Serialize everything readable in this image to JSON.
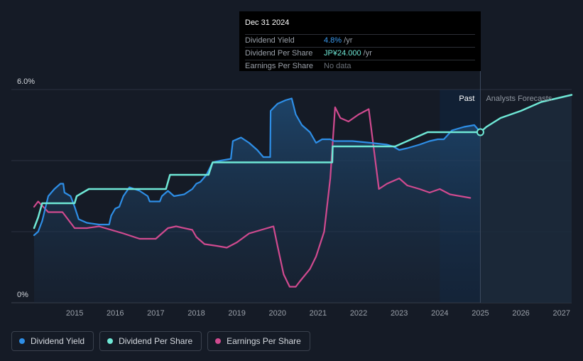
{
  "tooltip": {
    "date": "Dec 31 2024",
    "rows": [
      {
        "label": "Dividend Yield",
        "value": "4.8%",
        "unit": " /yr"
      },
      {
        "label": "Dividend Per Share",
        "value": "JP¥24.000",
        "unit": " /yr"
      },
      {
        "label": "Earnings Per Share",
        "value": "No data",
        "unit": ""
      }
    ]
  },
  "legend": [
    {
      "label": "Dividend Yield",
      "color": "#2e8ee6"
    },
    {
      "label": "Dividend Per Share",
      "color": "#6fe8d6"
    },
    {
      "label": "Earnings Per Share",
      "color": "#d04a8f"
    }
  ],
  "chart_data": {
    "type": "line",
    "title": "",
    "xlabel": "",
    "ylabel": "",
    "xlim": [
      2014.0,
      2027.25
    ],
    "ylim": [
      0,
      6
    ],
    "y_tick_labels": [
      {
        "v": 6,
        "label": "6.0%"
      },
      {
        "v": 0,
        "label": "0%"
      }
    ],
    "x_ticks": [
      2015,
      2016,
      2017,
      2018,
      2019,
      2020,
      2021,
      2022,
      2023,
      2024,
      2025,
      2026,
      2027
    ],
    "past_label": "Past",
    "forecast_label": "Analysts Forecasts",
    "forecast_start": 2025.0,
    "highlight_start": 2024.0,
    "series": [
      {
        "name": "Dividend Yield",
        "color": "#2e8ee6",
        "area": true,
        "points": [
          [
            2014.0,
            1.9
          ],
          [
            2014.1,
            2.0
          ],
          [
            2014.2,
            2.3
          ],
          [
            2014.35,
            3.0
          ],
          [
            2014.5,
            3.2
          ],
          [
            2014.65,
            3.35
          ],
          [
            2014.72,
            3.35
          ],
          [
            2014.75,
            3.1
          ],
          [
            2014.9,
            3.0
          ],
          [
            2015.0,
            2.7
          ],
          [
            2015.1,
            2.35
          ],
          [
            2015.3,
            2.25
          ],
          [
            2015.6,
            2.2
          ],
          [
            2015.85,
            2.2
          ],
          [
            2015.9,
            2.45
          ],
          [
            2016.0,
            2.65
          ],
          [
            2016.1,
            2.7
          ],
          [
            2016.2,
            3.0
          ],
          [
            2016.35,
            3.25
          ],
          [
            2016.6,
            3.15
          ],
          [
            2016.8,
            3.0
          ],
          [
            2016.85,
            2.85
          ],
          [
            2017.1,
            2.85
          ],
          [
            2017.15,
            3.0
          ],
          [
            2017.3,
            3.15
          ],
          [
            2017.45,
            3.0
          ],
          [
            2017.7,
            3.05
          ],
          [
            2017.9,
            3.2
          ],
          [
            2018.0,
            3.35
          ],
          [
            2018.1,
            3.4
          ],
          [
            2018.25,
            3.6
          ],
          [
            2018.4,
            3.95
          ],
          [
            2018.6,
            4.0
          ],
          [
            2018.85,
            4.05
          ],
          [
            2018.9,
            4.55
          ],
          [
            2019.1,
            4.65
          ],
          [
            2019.3,
            4.5
          ],
          [
            2019.5,
            4.3
          ],
          [
            2019.65,
            4.1
          ],
          [
            2019.82,
            4.1
          ],
          [
            2019.83,
            5.4
          ],
          [
            2020.0,
            5.6
          ],
          [
            2020.2,
            5.7
          ],
          [
            2020.35,
            5.75
          ],
          [
            2020.45,
            5.3
          ],
          [
            2020.6,
            5.0
          ],
          [
            2020.8,
            4.8
          ],
          [
            2020.95,
            4.5
          ],
          [
            2021.1,
            4.6
          ],
          [
            2021.3,
            4.6
          ],
          [
            2021.4,
            4.55
          ],
          [
            2021.6,
            4.55
          ],
          [
            2021.85,
            4.55
          ],
          [
            2022.3,
            4.5
          ],
          [
            2022.7,
            4.45
          ],
          [
            2022.85,
            4.4
          ],
          [
            2023.0,
            4.3
          ],
          [
            2023.2,
            4.35
          ],
          [
            2023.5,
            4.45
          ],
          [
            2023.75,
            4.55
          ],
          [
            2023.95,
            4.6
          ],
          [
            2024.1,
            4.6
          ],
          [
            2024.3,
            4.85
          ],
          [
            2024.6,
            4.95
          ],
          [
            2024.85,
            5.0
          ],
          [
            2025.0,
            4.8
          ]
        ]
      },
      {
        "name": "Dividend Per Share",
        "color": "#6fe8d6",
        "area": false,
        "points": [
          [
            2014.0,
            2.1
          ],
          [
            2014.1,
            2.4
          ],
          [
            2014.2,
            2.8
          ],
          [
            2015.0,
            2.8
          ],
          [
            2015.05,
            3.0
          ],
          [
            2015.35,
            3.2
          ],
          [
            2017.25,
            3.2
          ],
          [
            2017.35,
            3.6
          ],
          [
            2018.3,
            3.6
          ],
          [
            2018.4,
            3.95
          ],
          [
            2021.35,
            3.95
          ],
          [
            2021.36,
            4.4
          ],
          [
            2022.9,
            4.4
          ],
          [
            2023.2,
            4.55
          ],
          [
            2023.7,
            4.8
          ],
          [
            2024.0,
            4.8
          ],
          [
            2025.0,
            4.8
          ],
          [
            2025.15,
            4.95
          ],
          [
            2025.5,
            5.2
          ],
          [
            2026.0,
            5.4
          ],
          [
            2026.5,
            5.65
          ],
          [
            2027.25,
            5.85
          ]
        ]
      },
      {
        "name": "Earnings Per Share",
        "color": "#d04a8f",
        "area": false,
        "points": [
          [
            2014.0,
            2.7
          ],
          [
            2014.1,
            2.85
          ],
          [
            2014.35,
            2.55
          ],
          [
            2014.7,
            2.55
          ],
          [
            2015.0,
            2.1
          ],
          [
            2015.3,
            2.1
          ],
          [
            2015.6,
            2.15
          ],
          [
            2015.9,
            2.05
          ],
          [
            2016.2,
            1.95
          ],
          [
            2016.6,
            1.8
          ],
          [
            2017.0,
            1.8
          ],
          [
            2017.3,
            2.1
          ],
          [
            2017.5,
            2.15
          ],
          [
            2017.9,
            2.05
          ],
          [
            2018.0,
            1.85
          ],
          [
            2018.2,
            1.65
          ],
          [
            2018.5,
            1.6
          ],
          [
            2018.75,
            1.55
          ],
          [
            2019.0,
            1.7
          ],
          [
            2019.3,
            1.95
          ],
          [
            2019.6,
            2.05
          ],
          [
            2019.9,
            2.15
          ],
          [
            2020.0,
            1.6
          ],
          [
            2020.15,
            0.8
          ],
          [
            2020.3,
            0.45
          ],
          [
            2020.45,
            0.45
          ],
          [
            2020.55,
            0.6
          ],
          [
            2020.8,
            0.95
          ],
          [
            2020.95,
            1.3
          ],
          [
            2021.15,
            2.0
          ],
          [
            2021.3,
            3.5
          ],
          [
            2021.42,
            5.5
          ],
          [
            2021.55,
            5.2
          ],
          [
            2021.75,
            5.1
          ],
          [
            2022.0,
            5.3
          ],
          [
            2022.25,
            5.45
          ],
          [
            2022.5,
            3.2
          ],
          [
            2022.7,
            3.35
          ],
          [
            2023.0,
            3.5
          ],
          [
            2023.2,
            3.3
          ],
          [
            2023.5,
            3.2
          ],
          [
            2023.75,
            3.1
          ],
          [
            2024.0,
            3.2
          ],
          [
            2024.25,
            3.05
          ],
          [
            2024.5,
            3.0
          ],
          [
            2024.75,
            2.95
          ]
        ]
      }
    ]
  }
}
